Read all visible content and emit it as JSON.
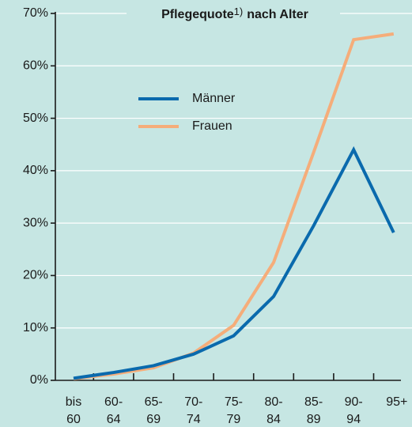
{
  "chart_data": {
    "type": "line",
    "title_parts": [
      "Pflegequote",
      "1)",
      "nach Alter"
    ],
    "categories": [
      [
        "bis",
        "60"
      ],
      [
        "60-",
        "64"
      ],
      [
        "65-",
        "69"
      ],
      [
        "70-",
        "74"
      ],
      [
        "75-",
        "79"
      ],
      [
        "80-",
        "84"
      ],
      [
        "85-",
        "89"
      ],
      [
        "90-",
        "94"
      ],
      [
        "95+"
      ]
    ],
    "series": [
      {
        "name": "Männer",
        "color": "#0a6aad",
        "values": [
          0.4,
          1.5,
          2.8,
          5,
          8.5,
          16,
          29.5,
          44,
          28.2
        ]
      },
      {
        "name": "Frauen",
        "color": "#f5ad7a",
        "values": [
          0.3,
          1.2,
          2.4,
          5.2,
          10.5,
          22.5,
          43.5,
          65,
          66.1
        ]
      }
    ],
    "ylim": [
      0,
      70
    ],
    "yticks": [
      {
        "value": 0,
        "label": "0%"
      },
      {
        "value": 10,
        "label": "10%"
      },
      {
        "value": 20,
        "label": "20%"
      },
      {
        "value": 30,
        "label": "30%"
      },
      {
        "value": 40,
        "label": "40%"
      },
      {
        "value": 50,
        "label": "50%"
      },
      {
        "value": 60,
        "label": "60%"
      },
      {
        "value": 70,
        "label": "70%"
      }
    ],
    "grid": true
  }
}
